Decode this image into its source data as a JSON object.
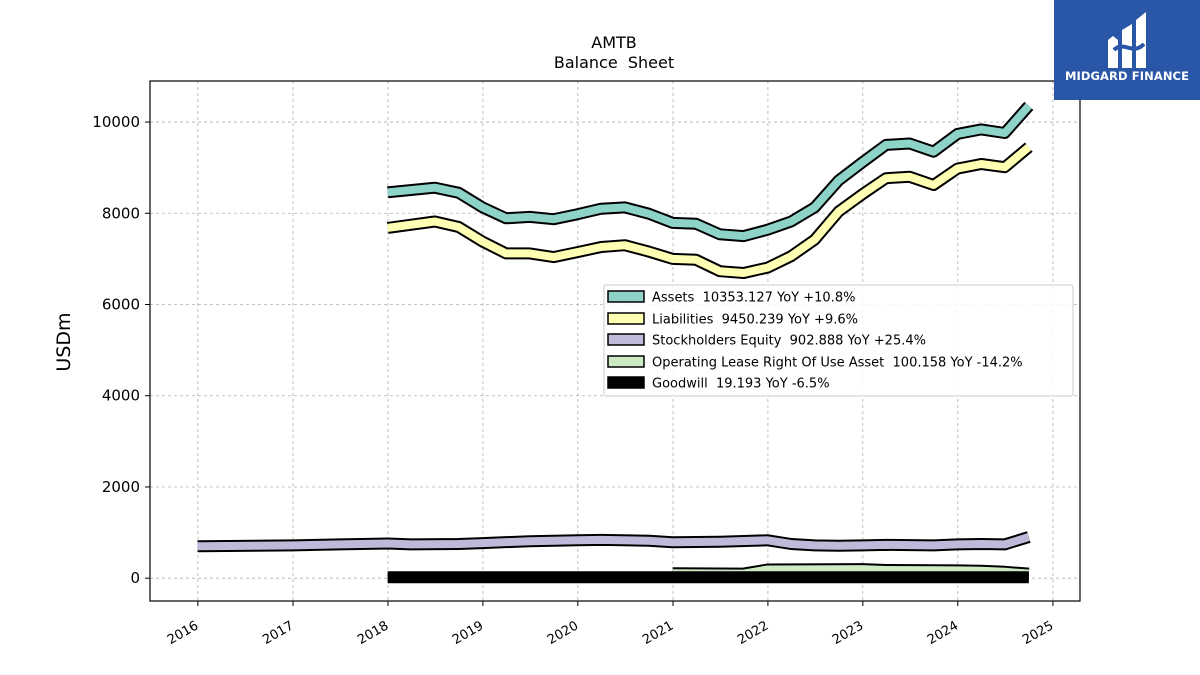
{
  "chart_data": {
    "type": "line",
    "title": "AMTB",
    "subtitle": "Balance  Sheet",
    "ylabel": "USDm",
    "xlabel": "",
    "xlim": [
      "2015-07-01",
      "2025-04-15"
    ],
    "ylim": [
      -500,
      10900
    ],
    "x_ticks": [
      "2016",
      "2017",
      "2018",
      "2019",
      "2020",
      "2021",
      "2022",
      "2023",
      "2024",
      "2025"
    ],
    "y_ticks": [
      0,
      2000,
      4000,
      6000,
      8000,
      10000
    ],
    "grid": true,
    "legend_position": "center-right",
    "series": [
      {
        "name": "Assets",
        "legend": "Assets  10353.127 YoY +10.8%",
        "color": "#8dd3c7",
        "points": [
          [
            "2017-12-31",
            8460
          ],
          [
            "2018-06-30",
            8560
          ],
          [
            "2018-09-30",
            8450
          ],
          [
            "2018-12-31",
            8130
          ],
          [
            "2019-03-31",
            7890
          ],
          [
            "2019-06-30",
            7920
          ],
          [
            "2019-09-30",
            7870
          ],
          [
            "2019-12-31",
            7980
          ],
          [
            "2020-03-31",
            8100
          ],
          [
            "2020-06-30",
            8130
          ],
          [
            "2020-09-30",
            7990
          ],
          [
            "2020-12-31",
            7790
          ],
          [
            "2021-03-31",
            7770
          ],
          [
            "2021-06-30",
            7540
          ],
          [
            "2021-09-30",
            7500
          ],
          [
            "2021-12-31",
            7640
          ],
          [
            "2022-03-31",
            7820
          ],
          [
            "2022-06-30",
            8130
          ],
          [
            "2022-09-30",
            8720
          ],
          [
            "2022-12-31",
            9120
          ],
          [
            "2023-03-31",
            9500
          ],
          [
            "2023-06-30",
            9530
          ],
          [
            "2023-09-30",
            9350
          ],
          [
            "2023-12-31",
            9740
          ],
          [
            "2024-03-31",
            9840
          ],
          [
            "2024-06-30",
            9760
          ],
          [
            "2024-09-30",
            10353.127
          ]
        ]
      },
      {
        "name": "Liabilities",
        "legend": "Liabilities  9450.239 YoY +9.6%",
        "color": "#ffffb3",
        "points": [
          [
            "2017-12-31",
            7680
          ],
          [
            "2018-06-30",
            7820
          ],
          [
            "2018-09-30",
            7700
          ],
          [
            "2018-12-31",
            7380
          ],
          [
            "2019-03-31",
            7120
          ],
          [
            "2019-06-30",
            7120
          ],
          [
            "2019-09-30",
            7040
          ],
          [
            "2019-12-31",
            7150
          ],
          [
            "2020-03-31",
            7260
          ],
          [
            "2020-06-30",
            7300
          ],
          [
            "2020-09-30",
            7160
          ],
          [
            "2020-12-31",
            7000
          ],
          [
            "2021-03-31",
            6980
          ],
          [
            "2021-06-30",
            6730
          ],
          [
            "2021-09-30",
            6690
          ],
          [
            "2021-12-31",
            6810
          ],
          [
            "2022-03-31",
            7060
          ],
          [
            "2022-06-30",
            7420
          ],
          [
            "2022-09-30",
            8040
          ],
          [
            "2022-12-31",
            8420
          ],
          [
            "2023-03-31",
            8770
          ],
          [
            "2023-06-30",
            8800
          ],
          [
            "2023-09-30",
            8620
          ],
          [
            "2023-12-31",
            8980
          ],
          [
            "2024-03-31",
            9080
          ],
          [
            "2024-06-30",
            9010
          ],
          [
            "2024-09-30",
            9450.239
          ]
        ]
      },
      {
        "name": "Stockholders Equity",
        "legend": "Stockholders Equity  902.888 YoY +25.4%",
        "color": "#bebada",
        "points": [
          [
            "2015-12-31",
            700
          ],
          [
            "2016-12-31",
            720
          ],
          [
            "2017-06-30",
            740
          ],
          [
            "2017-12-31",
            760
          ],
          [
            "2018-03-31",
            740
          ],
          [
            "2018-09-30",
            750
          ],
          [
            "2018-12-31",
            770
          ],
          [
            "2019-06-30",
            810
          ],
          [
            "2019-12-31",
            830
          ],
          [
            "2020-03-31",
            840
          ],
          [
            "2020-09-30",
            820
          ],
          [
            "2020-12-31",
            790
          ],
          [
            "2021-06-30",
            800
          ],
          [
            "2021-12-31",
            830
          ],
          [
            "2022-03-31",
            750
          ],
          [
            "2022-06-30",
            720
          ],
          [
            "2022-09-30",
            710
          ],
          [
            "2022-12-31",
            720
          ],
          [
            "2023-03-31",
            730
          ],
          [
            "2023-09-30",
            720
          ],
          [
            "2023-12-31",
            740
          ],
          [
            "2024-03-31",
            750
          ],
          [
            "2024-06-30",
            740
          ],
          [
            "2024-09-30",
            902.888
          ]
        ]
      },
      {
        "name": "Operating Lease Right Of Use Asset",
        "legend": "Operating Lease Right Of Use Asset  100.158 YoY -14.2%",
        "color": "#ccebc5",
        "points": [
          [
            "2020-12-31",
            110
          ],
          [
            "2021-09-30",
            100
          ],
          [
            "2021-12-31",
            190
          ],
          [
            "2022-12-31",
            200
          ],
          [
            "2023-03-31",
            180
          ],
          [
            "2023-12-31",
            170
          ],
          [
            "2024-03-31",
            165
          ],
          [
            "2024-06-30",
            140
          ],
          [
            "2024-09-30",
            100.158
          ]
        ]
      },
      {
        "name": "Goodwill",
        "legend": "Goodwill  19.193 YoY -6.5%",
        "color": "#000000",
        "points": [
          [
            "2017-12-31",
            20
          ],
          [
            "2020-12-31",
            20
          ],
          [
            "2023-12-31",
            20
          ],
          [
            "2024-09-30",
            19.193
          ]
        ]
      }
    ]
  },
  "logo": {
    "text": "MIDGARD FINANCE",
    "color": "#2a56a8"
  }
}
